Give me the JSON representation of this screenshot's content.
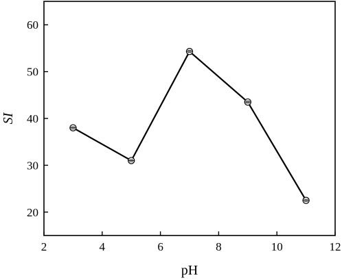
{
  "chart_data": {
    "type": "line",
    "title": "",
    "xlabel": "pH",
    "ylabel": "SI",
    "xlim": [
      2,
      12
    ],
    "ylim": [
      15,
      65
    ],
    "xticks": [
      2,
      4,
      6,
      8,
      10,
      12
    ],
    "yticks": [
      20,
      30,
      40,
      50,
      60
    ],
    "grid": false,
    "series": [
      {
        "x": [
          3,
          5,
          7,
          9,
          11
        ],
        "y": [
          38,
          31,
          54.3,
          43.5,
          22.5
        ],
        "color": "#000000",
        "marker": "circle-open"
      }
    ]
  }
}
